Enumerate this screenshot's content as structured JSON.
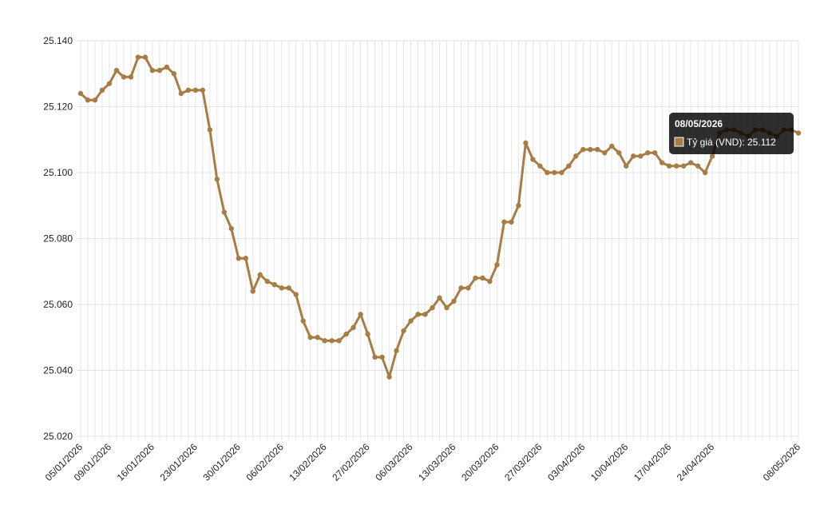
{
  "chart_data": {
    "type": "line",
    "categories": [
      "05/01/2026",
      null,
      null,
      null,
      "09/01/2026",
      null,
      null,
      null,
      null,
      null,
      "16/01/2026",
      null,
      null,
      null,
      null,
      null,
      "23/01/2026",
      null,
      null,
      null,
      null,
      null,
      "30/01/2026",
      null,
      null,
      null,
      null,
      null,
      "06/02/2026",
      null,
      null,
      null,
      null,
      null,
      "13/02/2026",
      null,
      null,
      null,
      null,
      null,
      "27/02/2026",
      null,
      null,
      null,
      null,
      null,
      "06/03/2026",
      null,
      null,
      null,
      null,
      null,
      "13/03/2026",
      null,
      null,
      null,
      null,
      null,
      "20/03/2026",
      null,
      null,
      null,
      null,
      null,
      "27/03/2026",
      null,
      null,
      null,
      null,
      null,
      "03/04/2026",
      null,
      null,
      null,
      null,
      null,
      "10/04/2026",
      null,
      null,
      null,
      null,
      null,
      "17/04/2026",
      null,
      null,
      null,
      null,
      null,
      "24/04/2026",
      null,
      null,
      null,
      null,
      null,
      null,
      null,
      null,
      null,
      null,
      null,
      "08/05/2026"
    ],
    "series": [
      {
        "name": "Tỷ giá (VND)",
        "color": "#a87d45",
        "values": [
          25124,
          25122,
          25122,
          25125,
          25127,
          25131,
          25129,
          25129,
          25135,
          25135,
          25131,
          25131,
          25132,
          25130,
          25124,
          25125,
          25125,
          25125,
          25113,
          25098,
          25088,
          25083,
          25074,
          25074,
          25064,
          25069,
          25067,
          25066,
          25065,
          25065,
          25063,
          25055,
          25050,
          25050,
          25049,
          25049,
          25049,
          25051,
          25053,
          25057,
          25051,
          25044,
          25044,
          25038,
          25046,
          25052,
          25055,
          25057,
          25057,
          25059,
          25062,
          25059,
          25061,
          25065,
          25065,
          25068,
          25068,
          25067,
          25072,
          25085,
          25085,
          25090,
          25109,
          25104,
          25102,
          25100,
          25100,
          25100,
          25102,
          25105,
          25107,
          25107,
          25107,
          25106,
          25108,
          25106,
          25102,
          25105,
          25105,
          25106,
          25106,
          25103,
          25102,
          25102,
          25102,
          25103,
          25102,
          25100,
          25105,
          25112,
          25113,
          25113,
          25112,
          25111,
          25113,
          25113,
          25112,
          25111,
          25113,
          25113,
          25112
        ]
      }
    ],
    "ylim": [
      25020,
      25140
    ],
    "yticks": [
      {
        "value": 25020,
        "label": "25.020"
      },
      {
        "value": 25040,
        "label": "25.040"
      },
      {
        "value": 25060,
        "label": "25.060"
      },
      {
        "value": 25080,
        "label": "25.080"
      },
      {
        "value": 25100,
        "label": "25.100"
      },
      {
        "value": 25120,
        "label": "25.120"
      },
      {
        "value": 25140,
        "label": "25.140"
      }
    ],
    "grid": true,
    "tooltip": {
      "title": "08/05/2026",
      "text": "Tỷ giá (VND): 25.112"
    }
  }
}
